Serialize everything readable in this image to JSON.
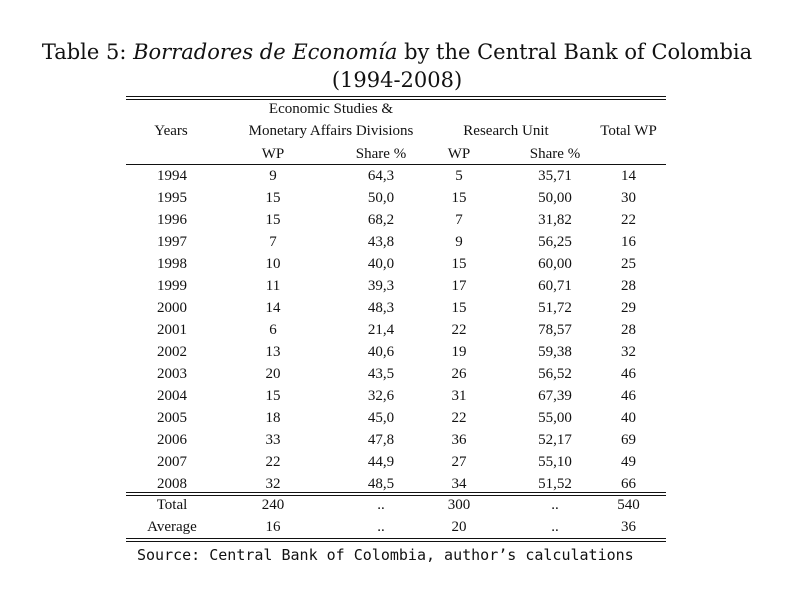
{
  "title": {
    "prefix": "Table 5: ",
    "italic": "Borradores de Economía",
    "suffix": " by the Central Bank of Colombia",
    "line2": "(1994-2008)"
  },
  "headers": {
    "years": "Years",
    "econ_line1": "Economic Studies &",
    "econ_line2": "Monetary Affairs Divisions",
    "research": "Research Unit",
    "total": "Total WP",
    "wp1": "WP",
    "share1": "Share %",
    "wp2": "WP",
    "share2": "Share %"
  },
  "rows": [
    [
      "1994",
      "9",
      "64,3",
      "5",
      "35,71",
      "14"
    ],
    [
      "1995",
      "15",
      "50,0",
      "15",
      "50,00",
      "30"
    ],
    [
      "1996",
      "15",
      "68,2",
      "7",
      "31,82",
      "22"
    ],
    [
      "1997",
      "7",
      "43,8",
      "9",
      "56,25",
      "16"
    ],
    [
      "1998",
      "10",
      "40,0",
      "15",
      "60,00",
      "25"
    ],
    [
      "1999",
      "11",
      "39,3",
      "17",
      "60,71",
      "28"
    ],
    [
      "2000",
      "14",
      "48,3",
      "15",
      "51,72",
      "29"
    ],
    [
      "2001",
      "6",
      "21,4",
      "22",
      "78,57",
      "28"
    ],
    [
      "2002",
      "13",
      "40,6",
      "19",
      "59,38",
      "32"
    ],
    [
      "2003",
      "20",
      "43,5",
      "26",
      "56,52",
      "46"
    ],
    [
      "2004",
      "15",
      "32,6",
      "31",
      "67,39",
      "46"
    ],
    [
      "2005",
      "18",
      "45,0",
      "22",
      "55,00",
      "40"
    ],
    [
      "2006",
      "33",
      "47,8",
      "36",
      "52,17",
      "69"
    ],
    [
      "2007",
      "22",
      "44,9",
      "27",
      "55,10",
      "49"
    ],
    [
      "2008",
      "32",
      "48,5",
      "34",
      "51,52",
      "66"
    ]
  ],
  "summary": [
    [
      "Total",
      "240",
      "..",
      "300",
      "..",
      "540"
    ],
    [
      "Average",
      "16",
      "..",
      "20",
      "..",
      "36"
    ]
  ],
  "source": "Source: Central Bank of Colombia, author’s calculations"
}
